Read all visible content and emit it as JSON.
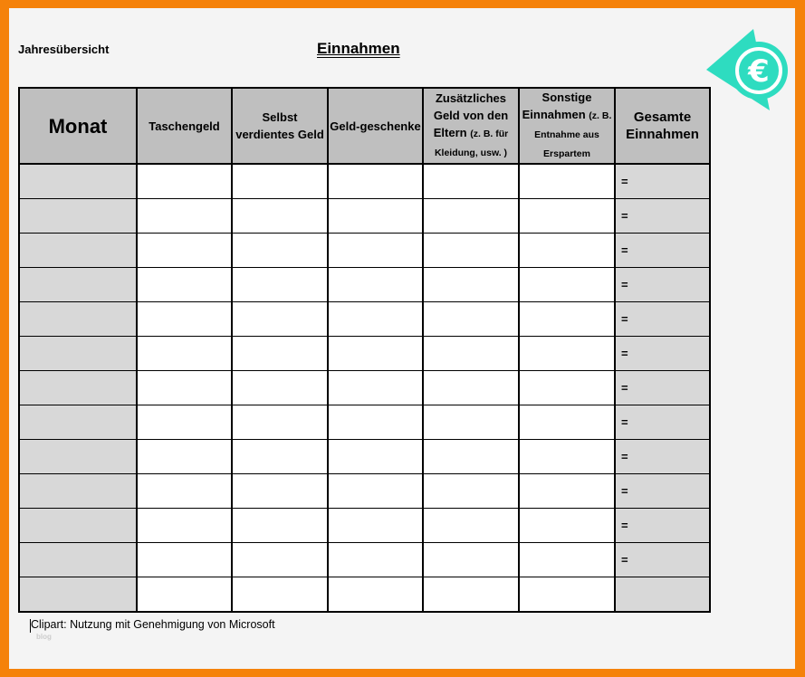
{
  "header": {
    "subtitle": "Jahresübersicht",
    "title": "Einnahmen"
  },
  "table": {
    "columns": [
      {
        "label": "Monat"
      },
      {
        "label": "Taschengeld"
      },
      {
        "label": "Selbst verdientes Geld"
      },
      {
        "label": "Geld-geschenke"
      },
      {
        "label": "Zusätzliches Geld von den Eltern",
        "note": "(z. B. für Kleidung, usw. )"
      },
      {
        "label": "Sonstige Einnahmen",
        "note": "(z. B. Entnahme aus Erspartem"
      },
      {
        "label": "Gesamte Einnahmen"
      }
    ],
    "row_count": 13,
    "total_marker": "=",
    "rows_with_marker": 12
  },
  "footer": {
    "credit": "Clipart: Nutzung mit Genehmigung von Microsoft",
    "watermark": "blog"
  },
  "logo": {
    "icon": "euro-icon",
    "color": "#2edcc0"
  },
  "colors": {
    "frame": "#f5820a",
    "header_bg": "#bfbfbf",
    "shaded": "#d8d8d8"
  }
}
